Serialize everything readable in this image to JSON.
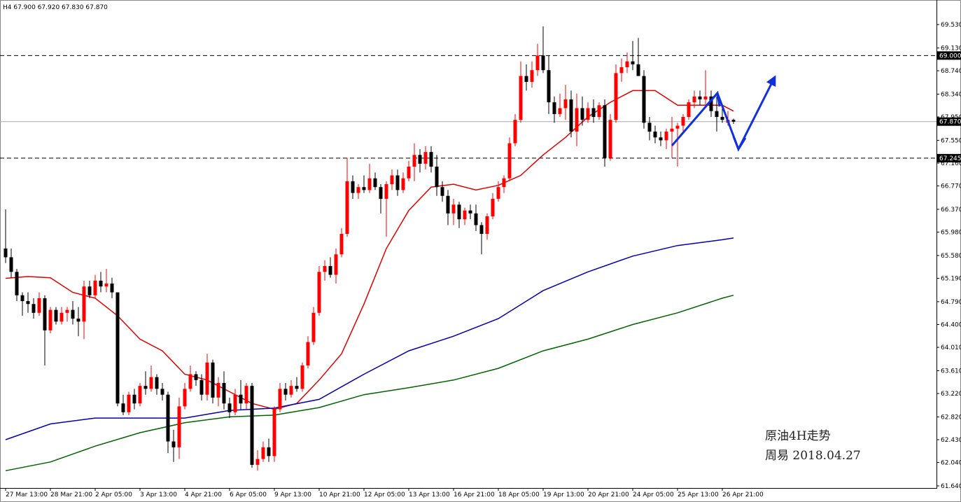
{
  "chart_data": {
    "type": "candlestick",
    "header": "H4 67.900 67.920 67.830 67.870",
    "bull_color": "#ff0000",
    "bear_color": "#000000",
    "ohlc": [
      [
        65.7,
        66.37,
        65.45,
        65.55
      ],
      [
        65.55,
        65.7,
        65.2,
        65.3
      ],
      [
        65.3,
        65.35,
        64.8,
        64.9
      ],
      [
        64.9,
        64.95,
        64.55,
        64.8
      ],
      [
        64.8,
        64.95,
        64.6,
        64.75
      ],
      [
        64.75,
        64.85,
        64.5,
        64.6
      ],
      [
        64.6,
        64.95,
        64.55,
        64.85
      ],
      [
        64.85,
        64.9,
        63.7,
        64.3
      ],
      [
        64.3,
        64.7,
        64.25,
        64.65
      ],
      [
        64.65,
        64.7,
        64.4,
        64.45
      ],
      [
        64.45,
        64.7,
        64.4,
        64.6
      ],
      [
        64.6,
        64.7,
        64.45,
        64.65
      ],
      [
        64.65,
        64.8,
        64.4,
        64.5
      ],
      [
        64.5,
        64.7,
        64.2,
        64.45
      ],
      [
        64.45,
        65.15,
        64.15,
        65.05
      ],
      [
        65.05,
        65.15,
        64.85,
        64.9
      ],
      [
        64.9,
        65.25,
        64.85,
        65.15
      ],
      [
        65.15,
        65.3,
        64.95,
        65.05
      ],
      [
        65.05,
        65.35,
        64.95,
        65.1
      ],
      [
        65.1,
        65.2,
        64.85,
        64.95
      ],
      [
        64.95,
        64.95,
        63.0,
        63.05
      ],
      [
        63.05,
        63.2,
        62.85,
        62.9
      ],
      [
        62.9,
        63.25,
        62.85,
        63.2
      ],
      [
        63.2,
        63.3,
        62.95,
        63.05
      ],
      [
        63.05,
        63.4,
        63.0,
        63.35
      ],
      [
        63.35,
        63.6,
        63.2,
        63.3
      ],
      [
        63.3,
        63.7,
        63.25,
        63.5
      ],
      [
        63.5,
        63.55,
        63.2,
        63.3
      ],
      [
        63.3,
        63.4,
        63.1,
        63.2
      ],
      [
        63.2,
        63.25,
        62.2,
        62.4
      ],
      [
        62.4,
        62.6,
        62.05,
        62.3
      ],
      [
        62.3,
        63.15,
        62.1,
        63.0
      ],
      [
        63.0,
        63.4,
        62.95,
        63.3
      ],
      [
        63.3,
        63.7,
        63.25,
        63.55
      ],
      [
        63.55,
        63.6,
        63.35,
        63.45
      ],
      [
        63.45,
        63.55,
        63.1,
        63.2
      ],
      [
        63.2,
        63.9,
        63.1,
        63.75
      ],
      [
        63.75,
        63.8,
        63.05,
        63.15
      ],
      [
        63.15,
        63.5,
        63.0,
        63.4
      ],
      [
        63.4,
        63.6,
        62.95,
        63.05
      ],
      [
        63.05,
        63.15,
        62.8,
        62.9
      ],
      [
        62.9,
        63.3,
        62.85,
        63.2
      ],
      [
        63.2,
        63.45,
        62.95,
        63.05
      ],
      [
        63.05,
        63.4,
        62.95,
        63.35
      ],
      [
        63.35,
        63.4,
        61.95,
        62.0
      ],
      [
        62.0,
        62.25,
        61.9,
        62.1
      ],
      [
        62.1,
        62.4,
        62.05,
        62.3
      ],
      [
        62.3,
        62.45,
        62.05,
        62.15
      ],
      [
        62.15,
        63.0,
        62.05,
        62.95
      ],
      [
        62.95,
        63.4,
        62.9,
        63.3
      ],
      [
        63.3,
        63.4,
        63.1,
        63.2
      ],
      [
        63.2,
        63.45,
        63.15,
        63.35
      ],
      [
        63.35,
        63.5,
        63.25,
        63.3
      ],
      [
        63.3,
        63.75,
        63.25,
        63.7
      ],
      [
        63.7,
        64.2,
        63.65,
        64.1
      ],
      [
        64.1,
        64.7,
        64.05,
        64.6
      ],
      [
        64.6,
        65.4,
        64.55,
        65.3
      ],
      [
        65.3,
        65.5,
        65.15,
        65.4
      ],
      [
        65.4,
        65.55,
        65.2,
        65.25
      ],
      [
        65.25,
        65.7,
        65.1,
        65.6
      ],
      [
        65.6,
        66.05,
        65.55,
        65.95
      ],
      [
        65.95,
        67.25,
        65.9,
        66.85
      ],
      [
        66.85,
        66.95,
        66.55,
        66.65
      ],
      [
        66.65,
        66.8,
        66.55,
        66.75
      ],
      [
        66.75,
        66.95,
        66.65,
        66.7
      ],
      [
        66.7,
        67.15,
        66.65,
        66.9
      ],
      [
        66.9,
        67.0,
        66.7,
        66.75
      ],
      [
        66.75,
        66.8,
        66.3,
        66.55
      ],
      [
        66.55,
        66.85,
        65.9,
        66.8
      ],
      [
        66.8,
        67.05,
        66.7,
        66.95
      ],
      [
        66.95,
        67.05,
        66.6,
        66.7
      ],
      [
        66.7,
        67.0,
        66.65,
        66.9
      ],
      [
        66.9,
        67.2,
        66.85,
        67.1
      ],
      [
        67.1,
        67.5,
        66.85,
        67.3
      ],
      [
        67.3,
        67.4,
        67.0,
        67.15
      ],
      [
        67.15,
        67.45,
        67.05,
        67.35
      ],
      [
        67.35,
        67.45,
        67.0,
        67.1
      ],
      [
        67.1,
        67.3,
        66.6,
        66.75
      ],
      [
        66.75,
        66.85,
        66.5,
        66.6
      ],
      [
        66.6,
        66.7,
        66.1,
        66.3
      ],
      [
        66.3,
        66.55,
        66.1,
        66.45
      ],
      [
        66.45,
        66.5,
        66.05,
        66.2
      ],
      [
        66.2,
        66.4,
        66.1,
        66.35
      ],
      [
        66.35,
        66.45,
        66.2,
        66.3
      ],
      [
        66.3,
        66.45,
        66.0,
        66.1
      ],
      [
        66.1,
        66.15,
        65.6,
        65.95
      ],
      [
        65.95,
        66.3,
        65.85,
        66.25
      ],
      [
        66.25,
        66.65,
        66.2,
        66.55
      ],
      [
        66.55,
        66.85,
        66.5,
        66.75
      ],
      [
        66.75,
        66.95,
        66.65,
        66.9
      ],
      [
        66.9,
        67.6,
        66.85,
        67.5
      ],
      [
        67.5,
        68.0,
        67.45,
        67.9
      ],
      [
        67.9,
        68.9,
        67.85,
        68.65
      ],
      [
        68.65,
        68.85,
        68.4,
        68.55
      ],
      [
        68.55,
        68.9,
        68.45,
        68.75
      ],
      [
        68.75,
        69.2,
        68.65,
        69.0
      ],
      [
        69.0,
        69.5,
        68.7,
        68.75
      ],
      [
        68.75,
        69.0,
        68.0,
        68.2
      ],
      [
        68.2,
        68.3,
        67.85,
        68.0
      ],
      [
        68.0,
        68.35,
        67.95,
        68.1
      ],
      [
        68.1,
        68.5,
        67.9,
        68.25
      ],
      [
        68.25,
        68.4,
        67.6,
        67.7
      ],
      [
        67.7,
        68.35,
        67.45,
        68.1
      ],
      [
        68.1,
        68.3,
        67.8,
        67.9
      ],
      [
        67.9,
        68.2,
        67.85,
        68.1
      ],
      [
        68.1,
        68.25,
        67.85,
        67.95
      ],
      [
        67.95,
        68.2,
        67.9,
        68.15
      ],
      [
        68.15,
        68.25,
        67.1,
        67.25
      ],
      [
        67.25,
        68.0,
        67.2,
        67.9
      ],
      [
        67.9,
        68.85,
        67.85,
        68.7
      ],
      [
        68.7,
        68.95,
        68.55,
        68.8
      ],
      [
        68.8,
        69.05,
        68.7,
        68.9
      ],
      [
        68.9,
        69.25,
        68.75,
        68.85
      ],
      [
        68.85,
        69.3,
        68.7,
        68.65
      ],
      [
        68.65,
        68.75,
        67.75,
        67.85
      ],
      [
        67.85,
        67.95,
        67.55,
        67.7
      ],
      [
        67.7,
        67.8,
        67.5,
        67.6
      ],
      [
        67.6,
        67.7,
        67.45,
        67.55
      ],
      [
        67.55,
        67.75,
        67.4,
        67.7
      ],
      [
        67.7,
        67.95,
        67.25,
        67.75
      ],
      [
        67.75,
        67.85,
        67.1,
        67.8
      ],
      [
        67.8,
        68.0,
        67.7,
        67.95
      ],
      [
        67.95,
        68.25,
        67.9,
        68.2
      ],
      [
        68.2,
        68.4,
        68.1,
        68.3
      ],
      [
        68.3,
        68.4,
        68.15,
        68.25
      ],
      [
        68.25,
        68.75,
        68.1,
        68.3
      ],
      [
        68.3,
        68.4,
        67.95,
        68.05
      ],
      [
        68.05,
        68.3,
        67.7,
        67.95
      ],
      [
        67.95,
        68.1,
        67.85,
        67.9
      ],
      [
        67.85,
        68.05,
        67.8,
        67.9
      ],
      [
        67.9,
        67.92,
        67.83,
        67.87
      ]
    ],
    "series": [
      {
        "color": "#e00000",
        "x": [
          0,
          4,
          8,
          12,
          16,
          20,
          24,
          28,
          32,
          36,
          40,
          44,
          48,
          52,
          56,
          60,
          64,
          68,
          72,
          76,
          80,
          84,
          88,
          92,
          96,
          100,
          104,
          108,
          112,
          116,
          120,
          124,
          128,
          130
        ],
        "values": [
          65.19,
          65.22,
          65.2,
          64.95,
          64.85,
          64.55,
          64.15,
          63.95,
          63.55,
          63.45,
          63.25,
          63.05,
          62.95,
          63.05,
          63.45,
          63.9,
          64.75,
          65.7,
          66.35,
          66.75,
          66.8,
          66.7,
          66.78,
          66.95,
          67.3,
          67.6,
          67.95,
          68.2,
          68.4,
          68.4,
          68.15,
          68.15,
          68.15,
          68.05
        ]
      },
      {
        "color": "#0000b0",
        "x": [
          0,
          8,
          16,
          24,
          32,
          40,
          48,
          56,
          64,
          72,
          80,
          88,
          96,
          104,
          112,
          120,
          128,
          130
        ],
        "values": [
          62.43,
          62.7,
          62.8,
          62.8,
          62.8,
          62.93,
          62.97,
          63.12,
          63.55,
          63.95,
          64.2,
          64.5,
          64.98,
          65.3,
          65.57,
          65.75,
          65.85,
          65.88
        ]
      },
      {
        "color": "#006400",
        "x": [
          0,
          8,
          16,
          24,
          32,
          40,
          48,
          56,
          64,
          72,
          80,
          88,
          96,
          104,
          112,
          120,
          128,
          130
        ],
        "values": [
          61.9,
          62.05,
          62.32,
          62.55,
          62.72,
          62.82,
          62.85,
          62.98,
          63.2,
          63.32,
          63.45,
          63.65,
          63.95,
          64.15,
          64.4,
          64.6,
          64.85,
          64.9
        ]
      }
    ],
    "levels": [
      {
        "value": 69.0,
        "label": "69.000",
        "style": "dashed"
      },
      {
        "value": 67.87,
        "label": "67.870",
        "style": "solid"
      },
      {
        "value": 67.245,
        "label": "67.245",
        "style": "dashed"
      }
    ],
    "xlim": [
      -1,
      166.25
    ],
    "xticks": [
      {
        "value": 0,
        "label": "27 Mar 13:00"
      },
      {
        "value": 8,
        "label": "28 Mar 21:00"
      },
      {
        "value": 16,
        "label": "2 Apr 05:00"
      },
      {
        "value": 24,
        "label": "3 Apr 13:00"
      },
      {
        "value": 32,
        "label": "4 Apr 21:00"
      },
      {
        "value": 40,
        "label": "6 Apr 05:00"
      },
      {
        "value": 48,
        "label": "9 Apr 13:00"
      },
      {
        "value": 56,
        "label": "10 Apr 21:00"
      },
      {
        "value": 64,
        "label": "12 Apr 05:00"
      },
      {
        "value": 72,
        "label": "13 Apr 13:00"
      },
      {
        "value": 80,
        "label": "16 Apr 21:00"
      },
      {
        "value": 88,
        "label": "18 Apr 05:00"
      },
      {
        "value": 96,
        "label": "19 Apr 13:00"
      },
      {
        "value": 104,
        "label": "20 Apr 21:00"
      },
      {
        "value": 112,
        "label": "24 Apr 05:00"
      },
      {
        "value": 120,
        "label": "25 Apr 13:00"
      },
      {
        "value": 128,
        "label": "26 Apr 21:00"
      }
    ],
    "ylim": [
      61.604,
      69.89
    ],
    "yticks": [
      {
        "value": 69.53,
        "label": "69.530"
      },
      {
        "value": 69.13,
        "label": "69.130"
      },
      {
        "value": 68.74,
        "label": "68.740"
      },
      {
        "value": 68.34,
        "label": "68.340"
      },
      {
        "value": 67.95,
        "label": "67.950"
      },
      {
        "value": 67.55,
        "label": "67.550"
      },
      {
        "value": 67.16,
        "label": "67.160"
      },
      {
        "value": 66.77,
        "label": "66.770"
      },
      {
        "value": 66.37,
        "label": "66.370"
      },
      {
        "value": 65.98,
        "label": "65.980"
      },
      {
        "value": 65.58,
        "label": "65.580"
      },
      {
        "value": 65.19,
        "label": "65.190"
      },
      {
        "value": 64.79,
        "label": "64.790"
      },
      {
        "value": 64.4,
        "label": "64.400"
      },
      {
        "value": 64.01,
        "label": "64.010"
      },
      {
        "value": 63.61,
        "label": "63.610"
      },
      {
        "value": 63.22,
        "label": "63.220"
      },
      {
        "value": 62.82,
        "label": "62.820"
      },
      {
        "value": 62.43,
        "label": "62.430"
      },
      {
        "value": 62.04,
        "label": "62.040"
      },
      {
        "value": 61.64,
        "label": "61.640"
      }
    ],
    "annotations": [
      "原油4H走势",
      "周易  2018.04.27"
    ]
  }
}
